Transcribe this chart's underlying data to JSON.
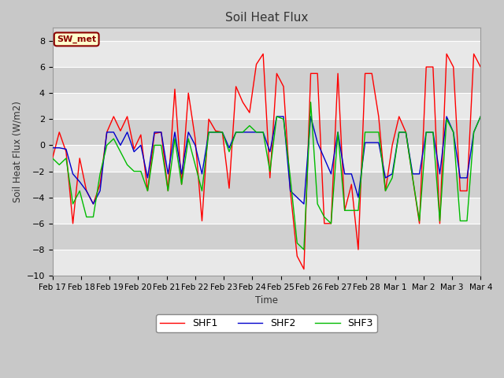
{
  "title": "Soil Heat Flux",
  "ylabel": "Soil Heat Flux (W/m2)",
  "xlabel": "Time",
  "ylim": [
    -10,
    9
  ],
  "yticks": [
    -10,
    -8,
    -6,
    -4,
    -2,
    0,
    2,
    4,
    6,
    8
  ],
  "legend_label": "SW_met",
  "legend_bg": "#ffffcc",
  "legend_border": "#8b0000",
  "line_colors": {
    "SHF1": "#ff0000",
    "SHF2": "#0000cc",
    "SHF3": "#00bb00"
  },
  "xtick_labels": [
    "Feb 17",
    "Feb 18",
    "Feb 19",
    "Feb 20",
    "Feb 21",
    "Feb 22",
    "Feb 23",
    "Feb 24",
    "Feb 25",
    "Feb 26",
    "Feb 27",
    "Feb 28",
    "Mar 1",
    "Mar 2",
    "Mar 3",
    "Mar 4"
  ],
  "SHF1": [
    -1.0,
    1.0,
    -0.5,
    -6.0,
    -1.0,
    -3.5,
    -4.5,
    -3.0,
    1.0,
    2.2,
    1.1,
    2.2,
    -0.3,
    0.8,
    -3.5,
    0.9,
    1.0,
    -3.5,
    4.3,
    -3.0,
    4.0,
    0.5,
    -5.8,
    2.0,
    1.1,
    1.0,
    -3.3,
    4.5,
    3.3,
    2.5,
    6.2,
    7.0,
    -2.5,
    5.5,
    4.5,
    -3.5,
    -8.5,
    -9.5,
    5.5,
    5.5,
    -6.0,
    -6.0,
    5.5,
    -5.0,
    -3.0,
    -8.0,
    5.5,
    5.5,
    2.2,
    -3.5,
    0.0,
    2.2,
    1.0,
    -2.5,
    -6.0,
    6.0,
    6.0,
    -6.0,
    7.0,
    6.0,
    -3.5,
    -3.5,
    7.0,
    6.0
  ],
  "SHF2": [
    -0.2,
    -0.2,
    -0.3,
    -2.2,
    -2.8,
    -3.5,
    -4.5,
    -3.5,
    1.0,
    1.0,
    0.0,
    1.0,
    -0.5,
    0.0,
    -2.5,
    1.0,
    1.0,
    -2.2,
    1.0,
    -2.2,
    1.0,
    0.0,
    -2.2,
    1.0,
    1.0,
    1.0,
    -0.2,
    1.0,
    1.0,
    1.0,
    1.0,
    1.0,
    -0.5,
    2.2,
    2.2,
    -3.5,
    -4.0,
    -4.5,
    2.2,
    0.2,
    -1.0,
    -2.2,
    1.0,
    -2.2,
    -2.2,
    -4.0,
    0.2,
    0.2,
    0.2,
    -2.5,
    -2.2,
    1.0,
    1.0,
    -2.2,
    -2.2,
    1.0,
    1.0,
    -2.2,
    2.2,
    1.0,
    -2.5,
    -2.5,
    1.0,
    2.2
  ],
  "SHF3": [
    -1.0,
    -1.5,
    -1.0,
    -4.5,
    -3.5,
    -5.5,
    -5.5,
    -2.2,
    0.0,
    0.5,
    -0.5,
    -1.5,
    -2.0,
    -2.0,
    -3.5,
    0.0,
    0.0,
    -3.5,
    0.5,
    -3.0,
    0.5,
    -1.5,
    -3.5,
    1.0,
    1.0,
    1.0,
    -0.5,
    1.0,
    1.0,
    1.5,
    1.0,
    1.0,
    -2.0,
    2.2,
    2.0,
    -2.5,
    -7.5,
    -8.0,
    3.3,
    -4.5,
    -5.5,
    -6.0,
    1.0,
    -5.0,
    -5.0,
    -5.0,
    1.0,
    1.0,
    1.0,
    -3.5,
    -2.5,
    1.0,
    1.0,
    -2.5,
    -5.8,
    1.0,
    1.0,
    -5.8,
    2.0,
    1.0,
    -5.8,
    -5.8,
    1.0,
    2.2
  ]
}
